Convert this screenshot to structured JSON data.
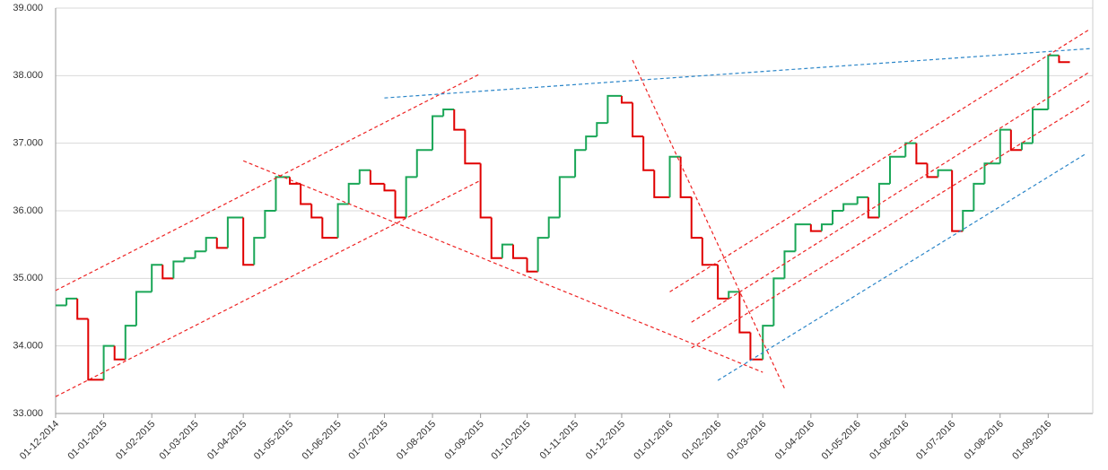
{
  "chart_data": {
    "type": "step",
    "x": [
      "01-12-2014",
      "08-12-2014",
      "15-12-2014",
      "22-12-2014",
      "01-01-2015",
      "08-01-2015",
      "15-01-2015",
      "22-01-2015",
      "01-02-2015",
      "08-02-2015",
      "15-02-2015",
      "22-02-2015",
      "01-03-2015",
      "08-03-2015",
      "15-03-2015",
      "22-03-2015",
      "01-04-2015",
      "08-04-2015",
      "15-04-2015",
      "22-04-2015",
      "01-05-2015",
      "08-05-2015",
      "15-05-2015",
      "22-05-2015",
      "01-06-2015",
      "08-06-2015",
      "15-06-2015",
      "22-06-2015",
      "01-07-2015",
      "08-07-2015",
      "15-07-2015",
      "22-07-2015",
      "01-08-2015",
      "08-08-2015",
      "15-08-2015",
      "22-08-2015",
      "01-09-2015",
      "08-09-2015",
      "15-09-2015",
      "22-09-2015",
      "01-10-2015",
      "08-10-2015",
      "15-10-2015",
      "22-10-2015",
      "01-11-2015",
      "08-11-2015",
      "15-11-2015",
      "22-11-2015",
      "01-12-2015",
      "08-12-2015",
      "15-12-2015",
      "22-12-2015",
      "01-01-2016",
      "08-01-2016",
      "15-01-2016",
      "22-01-2016",
      "01-02-2016",
      "08-02-2016",
      "15-02-2016",
      "22-02-2016",
      "01-03-2016",
      "08-03-2016",
      "15-03-2016",
      "22-03-2016",
      "01-04-2016",
      "08-04-2016",
      "15-04-2016",
      "22-04-2016",
      "01-05-2016",
      "08-05-2016",
      "15-05-2016",
      "22-05-2016",
      "01-06-2016",
      "08-06-2016",
      "15-06-2016",
      "22-06-2016",
      "01-07-2016",
      "08-07-2016",
      "15-07-2016",
      "22-07-2016",
      "01-08-2016",
      "08-08-2016",
      "15-08-2016",
      "22-08-2016",
      "01-09-2016",
      "08-09-2016"
    ],
    "values": [
      34.6,
      34.7,
      34.4,
      33.5,
      34.0,
      33.8,
      34.3,
      34.8,
      35.2,
      35.0,
      35.25,
      35.3,
      35.4,
      35.6,
      35.45,
      35.9,
      35.2,
      35.6,
      36.0,
      36.5,
      36.4,
      36.1,
      35.9,
      35.6,
      36.1,
      36.4,
      36.6,
      36.4,
      36.3,
      35.9,
      36.5,
      36.9,
      37.4,
      37.5,
      37.2,
      36.7,
      35.9,
      35.3,
      35.5,
      35.3,
      35.1,
      35.6,
      35.9,
      36.5,
      36.9,
      37.1,
      37.3,
      37.7,
      37.6,
      37.1,
      36.6,
      36.2,
      36.8,
      36.2,
      35.6,
      35.2,
      34.7,
      34.8,
      34.2,
      33.8,
      34.3,
      35.0,
      35.4,
      35.8,
      35.7,
      35.8,
      36.0,
      36.1,
      36.2,
      35.9,
      36.4,
      36.8,
      37.0,
      36.7,
      36.5,
      36.6,
      35.7,
      36.0,
      36.4,
      36.7,
      37.2,
      36.9,
      37.0,
      37.5,
      38.3,
      38.2
    ],
    "up_color": "#1aa657",
    "down_color": "#e00000",
    "trendlines": [
      {
        "color": "#ee2222",
        "x": [
          "01-12-2014",
          "01-09-2015"
        ],
        "values": [
          34.82,
          38.03
        ]
      },
      {
        "color": "#ee2222",
        "x": [
          "01-12-2014",
          "01-09-2015"
        ],
        "values": [
          33.25,
          36.45
        ]
      },
      {
        "color": "#2a85c8",
        "x": [
          "01-07-2015",
          "28-09-2016"
        ],
        "values": [
          37.67,
          38.4
        ]
      },
      {
        "color": "#ee2222",
        "x": [
          "01-04-2015",
          "01-03-2016"
        ],
        "values": [
          36.74,
          33.61
        ]
      },
      {
        "color": "#ee2222",
        "x": [
          "08-12-2015",
          "15-03-2016"
        ],
        "values": [
          38.23,
          33.37
        ]
      },
      {
        "color": "#ee2222",
        "x": [
          "01-01-2016",
          "28-09-2016"
        ],
        "values": [
          34.8,
          38.69
        ]
      },
      {
        "color": "#ee2222",
        "x": [
          "15-01-2016",
          "28-09-2016"
        ],
        "values": [
          34.35,
          38.06
        ]
      },
      {
        "color": "#ee2222",
        "x": [
          "15-01-2016",
          "28-09-2016"
        ],
        "values": [
          33.97,
          37.63
        ]
      },
      {
        "color": "#2a85c8",
        "x": [
          "01-02-2016",
          "25-09-2016"
        ],
        "values": [
          33.49,
          36.84
        ]
      }
    ],
    "xlim": [
      "01-12-2014",
      "28-09-2016"
    ],
    "xticks": [
      "01-12-2014",
      "01-01-2015",
      "01-02-2015",
      "01-03-2015",
      "01-04-2015",
      "01-05-2015",
      "01-06-2015",
      "01-07-2015",
      "01-08-2015",
      "01-09-2015",
      "01-10-2015",
      "01-11-2015",
      "01-12-2015",
      "01-01-2016",
      "01-02-2016",
      "01-03-2016",
      "01-04-2016",
      "01-05-2016",
      "01-06-2016",
      "01-07-2016",
      "01-08-2016",
      "01-09-2016"
    ],
    "ylim": [
      33,
      39
    ],
    "yticks": [
      {
        "value": 33,
        "label": "33.000"
      },
      {
        "value": 34,
        "label": "34.000"
      },
      {
        "value": 35,
        "label": "35.000"
      },
      {
        "value": 36,
        "label": "36.000"
      },
      {
        "value": 37,
        "label": "37.000"
      },
      {
        "value": 38,
        "label": "38.000"
      },
      {
        "value": 39,
        "label": "39.000"
      }
    ],
    "grid": true
  }
}
